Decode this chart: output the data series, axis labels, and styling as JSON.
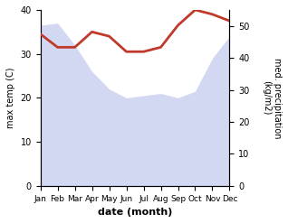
{
  "months": [
    "Jan",
    "Feb",
    "Mar",
    "Apr",
    "May",
    "Jun",
    "Jul",
    "Aug",
    "Sep",
    "Oct",
    "Nov",
    "Dec"
  ],
  "month_indices": [
    0,
    1,
    2,
    3,
    4,
    5,
    6,
    7,
    8,
    9,
    10,
    11
  ],
  "temperature": [
    34.5,
    31.5,
    31.5,
    35.0,
    34.0,
    30.5,
    30.5,
    31.5,
    36.5,
    40.0,
    39.0,
    37.5
  ],
  "precipitation": [
    36.5,
    37.0,
    32.0,
    26.0,
    22.0,
    20.0,
    20.5,
    21.0,
    20.0,
    21.5,
    29.0,
    34.0
  ],
  "temp_color": "#c0392b",
  "precip_color_fill": "#b0b8e8",
  "temp_ylim": [
    0,
    40
  ],
  "precip_ylim": [
    0,
    55
  ],
  "temp_yticks": [
    0,
    10,
    20,
    30,
    40
  ],
  "precip_yticks": [
    0,
    10,
    20,
    30,
    40,
    50
  ],
  "xlabel": "date (month)",
  "ylabel_left": "max temp (C)",
  "ylabel_right": "med. precipitation\n(kg/m2)",
  "temp_linewidth": 2.0,
  "fill_alpha": 0.55,
  "tick_fontsize": 7,
  "label_fontsize": 7,
  "xlabel_fontsize": 8
}
